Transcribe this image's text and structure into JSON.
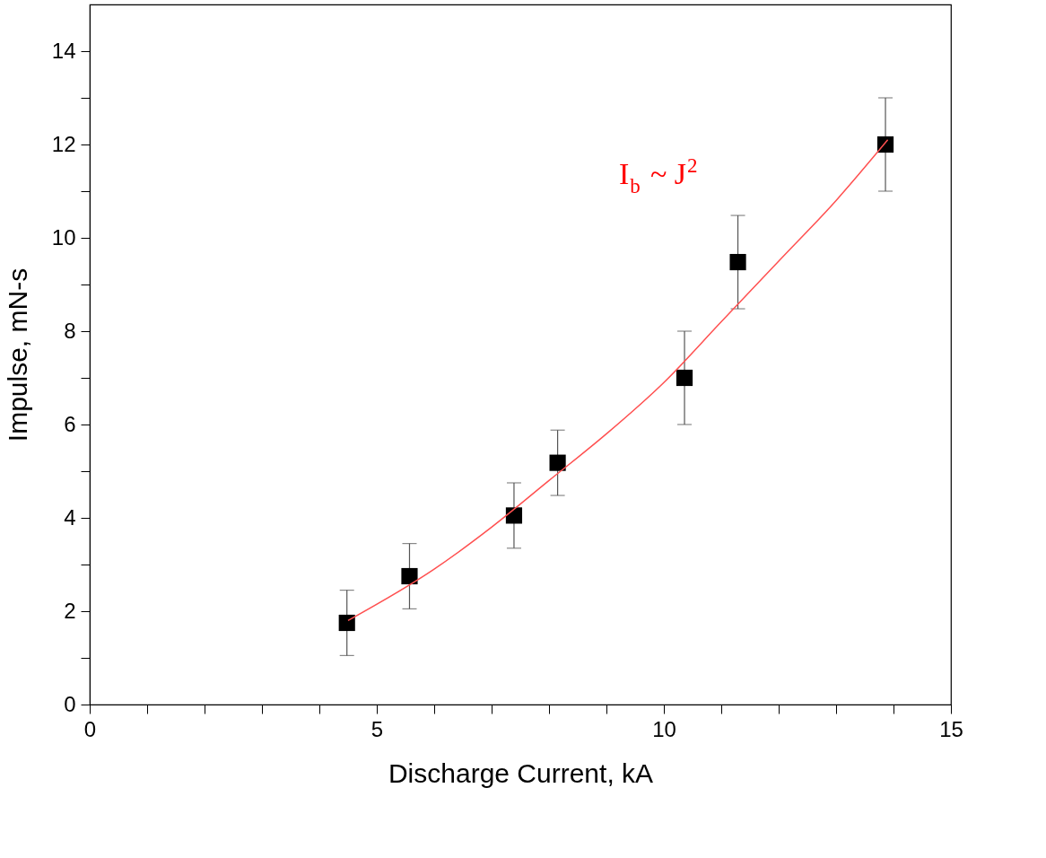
{
  "chart_data": {
    "type": "scatter",
    "xlabel": "Discharge Current, kA",
    "ylabel": "Impulse, mN-s",
    "xlim": [
      0,
      15
    ],
    "ylim": [
      0,
      15
    ],
    "xticks": [
      0,
      {
        "value": 1,
        "label": null
      },
      {
        "value": 2,
        "label": null
      },
      {
        "value": 3,
        "label": null
      },
      {
        "value": 4,
        "label": null
      },
      5,
      {
        "value": 6,
        "label": null
      },
      {
        "value": 7,
        "label": null
      },
      {
        "value": 8,
        "label": null
      },
      {
        "value": 9,
        "label": null
      },
      10,
      {
        "value": 11,
        "label": null
      },
      {
        "value": 12,
        "label": null
      },
      {
        "value": 13,
        "label": null
      },
      {
        "value": 14,
        "label": null
      },
      15
    ],
    "yticks": [
      0,
      {
        "value": 1,
        "label": null
      },
      2,
      {
        "value": 3,
        "label": null
      },
      4,
      {
        "value": 5,
        "label": null
      },
      6,
      {
        "value": 7,
        "label": null
      },
      8,
      {
        "value": 9,
        "label": null
      },
      10,
      {
        "value": 11,
        "label": null
      },
      12,
      {
        "value": 13,
        "label": null
      },
      14
    ],
    "grid": false,
    "annotations": [
      "I$_{b}$ ~ J$^{2}$"
    ],
    "series": [
      {
        "color": "#000000",
        "marker": "square",
        "x": [
          4.48,
          5.57,
          7.39,
          8.15,
          10.36,
          11.29,
          13.86
        ],
        "values": [
          1.75,
          2.75,
          4.05,
          5.18,
          7.0,
          9.48,
          12.0
        ],
        "errors": [
          0.7,
          0.7,
          0.7,
          0.7,
          1.0,
          1.0,
          1.0
        ]
      },
      {
        "type": "line",
        "color": "#ff5050",
        "line_style": "solid",
        "x": [
          4.5,
          6,
          7,
          8,
          9,
          10,
          11,
          12,
          13,
          13.9
        ],
        "values": [
          1.8,
          2.9,
          3.8,
          4.8,
          5.8,
          6.9,
          8.2,
          9.5,
          10.8,
          12.1
        ]
      }
    ]
  }
}
